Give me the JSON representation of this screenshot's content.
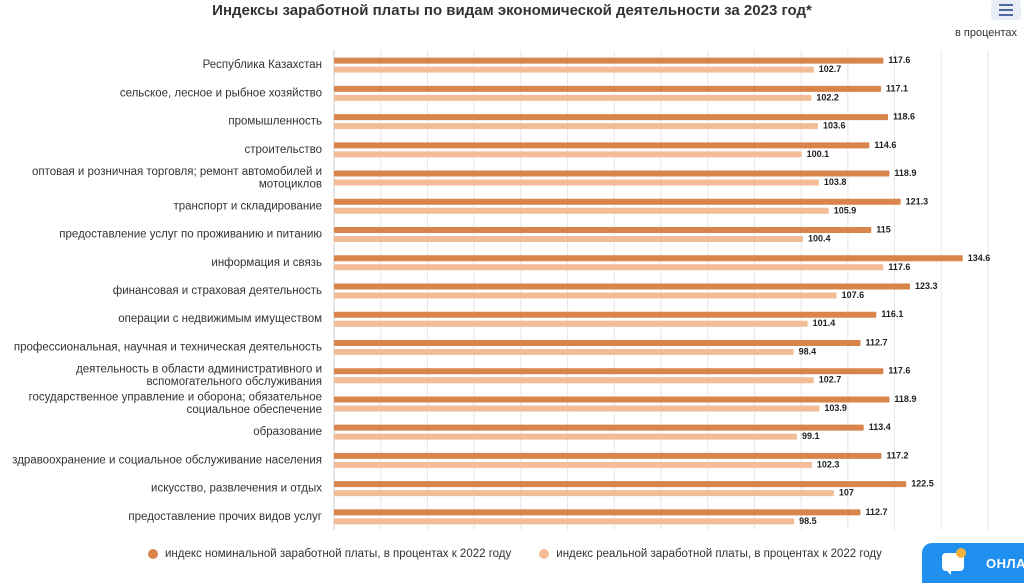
{
  "header": {
    "title": "Индексы заработной платы по видам экономической деятельности за 2023 год*",
    "unit": "в процентах",
    "menu_icon": "hamburger-menu-icon"
  },
  "widget": {
    "label": "ОНЛАЙН",
    "icon": "chat-bubble-icon"
  },
  "colors": {
    "nominal": "#d8844a",
    "real": "#f2bc96",
    "grid": "#e6e6e6",
    "axis": "#cccccc"
  },
  "chart_data": {
    "type": "bar",
    "orientation": "horizontal",
    "title": "Индексы заработной платы по видам экономической деятельности за 2023 год*",
    "xlim": [
      0,
      140
    ],
    "grid": true,
    "legend_position": "bottom",
    "categories": [
      "Республика Казахстан",
      "сельское, лесное и рыбное хозяйство",
      "промышленность",
      "строительство",
      "оптовая и розничная торговля; ремонт автомобилей и мотоциклов",
      "транспорт и складирование",
      "предоставление услуг по проживанию и питанию",
      "информация и связь",
      "финансовая и страховая деятельность",
      "операции с недвижимым имуществом",
      "профессиональная, научная и техническая деятельность",
      "деятельность в области административного и вспомогательного обслуживания",
      "государственное управление и оборона; обязательное социальное обеспечение",
      "образование",
      "здравоохранение и социальное обслуживание населения",
      "искусство, развлечения и отдых",
      "предоставление прочих видов услуг"
    ],
    "category_lines": [
      [
        "Республика Казахстан"
      ],
      [
        "сельское, лесное и рыбное хозяйство"
      ],
      [
        "промышленность"
      ],
      [
        "строительство"
      ],
      [
        "оптовая и розничная торговля; ремонт автомобилей и",
        "мотоциклов"
      ],
      [
        "транспорт и складирование"
      ],
      [
        "предоставление услуг по проживанию и питанию"
      ],
      [
        "информация и связь"
      ],
      [
        "финансовая и страховая деятельность"
      ],
      [
        "операции с недвижимым имуществом"
      ],
      [
        "профессиональная, научная и техническая деятельность"
      ],
      [
        "деятельность в области административного и",
        "вспомогательного обслуживания"
      ],
      [
        "государственное управление и оборона; обязательное",
        "социальное обеспечение"
      ],
      [
        "образование"
      ],
      [
        "здравоохранение и социальное обслуживание населения"
      ],
      [
        "искусство, развлечения и отдых"
      ],
      [
        "предоставление прочих видов услуг"
      ]
    ],
    "series": [
      {
        "name": "индекс номинальной заработной платы, в процентах к 2022 году",
        "color": "#d8844a",
        "values": [
          117.6,
          117.1,
          118.6,
          114.6,
          118.9,
          121.3,
          115,
          134.6,
          123.3,
          116.1,
          112.7,
          117.6,
          118.9,
          113.4,
          117.2,
          122.5,
          112.7
        ]
      },
      {
        "name": "индекс реальной заработной платы, в процентах к 2022 году",
        "color": "#f2bc96",
        "values": [
          102.7,
          102.2,
          103.6,
          100.1,
          103.8,
          105.9,
          100.4,
          117.6,
          107.6,
          101.4,
          98.4,
          102.7,
          103.9,
          99.1,
          102.3,
          107,
          98.5
        ]
      }
    ]
  }
}
